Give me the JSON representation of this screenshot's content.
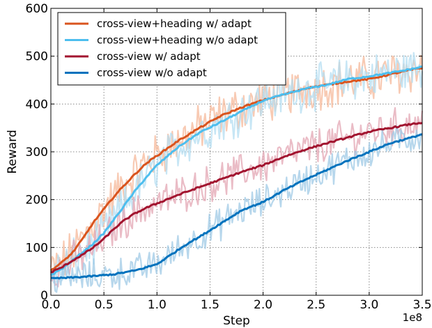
{
  "chart_data": {
    "type": "line",
    "xlabel": "Step",
    "ylabel": "Reward",
    "x_offset_text": "1e8",
    "xlim": [
      0,
      3.5
    ],
    "ylim": [
      0,
      600
    ],
    "xticks": [
      0.0,
      0.5,
      1.0,
      1.5,
      2.0,
      2.5,
      3.0,
      3.5
    ],
    "xtick_labels": [
      "0.0",
      "0.5",
      "1.0",
      "1.5",
      "2.0",
      "2.5",
      "3.0",
      "3.5"
    ],
    "yticks": [
      0,
      100,
      200,
      300,
      400,
      500,
      600
    ],
    "ytick_labels": [
      "0",
      "100",
      "200",
      "300",
      "400",
      "500",
      "600"
    ],
    "grid": true,
    "legend_position": "upper-left",
    "series": [
      {
        "name": "cross-view+heading w/ adapt",
        "color": "#d9541e",
        "shade_color": "#f6b89a",
        "noise": 40,
        "x": [
          0,
          0.1,
          0.2,
          0.3,
          0.4,
          0.5,
          0.6,
          0.7,
          0.8,
          0.9,
          1.0,
          1.2,
          1.4,
          1.6,
          1.8,
          2.0,
          2.2,
          2.4,
          2.6,
          2.8,
          3.0,
          3.2,
          3.4,
          3.5
        ],
        "values": [
          52,
          68,
          88,
          118,
          152,
          180,
          208,
          232,
          255,
          276,
          292,
          323,
          350,
          375,
          393,
          408,
          420,
          433,
          440,
          447,
          452,
          462,
          472,
          475
        ]
      },
      {
        "name": "cross-view+heading w/o adapt",
        "color": "#4dbeee",
        "shade_color": "#b4def2",
        "noise": 38,
        "x": [
          0,
          0.1,
          0.2,
          0.3,
          0.4,
          0.5,
          0.6,
          0.7,
          0.8,
          0.9,
          1.0,
          1.2,
          1.4,
          1.6,
          1.8,
          2.0,
          2.2,
          2.4,
          2.6,
          2.8,
          3.0,
          3.2,
          3.4,
          3.5
        ],
        "values": [
          42,
          55,
          72,
          90,
          108,
          130,
          160,
          190,
          220,
          247,
          272,
          310,
          340,
          362,
          385,
          407,
          420,
          432,
          440,
          452,
          458,
          465,
          473,
          478
        ]
      },
      {
        "name": "cross-view w/ adapt",
        "color": "#a2142f",
        "shade_color": "#e3a5b3",
        "noise": 32,
        "x": [
          0,
          0.1,
          0.2,
          0.3,
          0.4,
          0.5,
          0.6,
          0.7,
          0.8,
          0.9,
          1.0,
          1.2,
          1.4,
          1.6,
          1.8,
          2.0,
          2.2,
          2.4,
          2.6,
          2.8,
          3.0,
          3.2,
          3.4,
          3.5
        ],
        "values": [
          48,
          58,
          72,
          85,
          100,
          118,
          140,
          158,
          172,
          183,
          192,
          210,
          226,
          242,
          258,
          272,
          290,
          305,
          318,
          330,
          342,
          350,
          358,
          361
        ]
      },
      {
        "name": "cross-view w/o adapt",
        "color": "#0072bd",
        "shade_color": "#9fc9e6",
        "noise": 28,
        "x": [
          0,
          0.2,
          0.4,
          0.6,
          0.8,
          1.0,
          1.1,
          1.2,
          1.3,
          1.4,
          1.6,
          1.8,
          2.0,
          2.2,
          2.4,
          2.6,
          2.8,
          3.0,
          3.2,
          3.4,
          3.5
        ],
        "values": [
          35,
          37,
          40,
          44,
          52,
          65,
          80,
          95,
          110,
          122,
          150,
          178,
          195,
          220,
          242,
          262,
          282,
          300,
          318,
          330,
          337
        ]
      }
    ]
  }
}
